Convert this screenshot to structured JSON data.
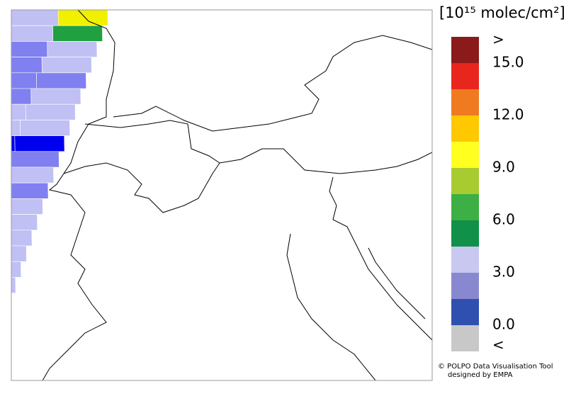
{
  "legend": {
    "title": "[10¹⁵ molec/cm²]",
    "colors": [
      "#8b1a1a",
      "#e8261e",
      "#f07a20",
      "#ffc800",
      "#ffff20",
      "#a8cc30",
      "#3cb044",
      "#109048",
      "#c8c8f0",
      "#8888d0",
      "#3050b0",
      "#c8c8c8"
    ],
    "labels": [
      ">",
      "15.0",
      "12.0",
      "9.0",
      "6.0",
      "3.0",
      "0.0",
      "<"
    ]
  },
  "credit": {
    "line1": "© POLPO Data Visualisation Tool",
    "line2": "designed by EMPA"
  }
}
